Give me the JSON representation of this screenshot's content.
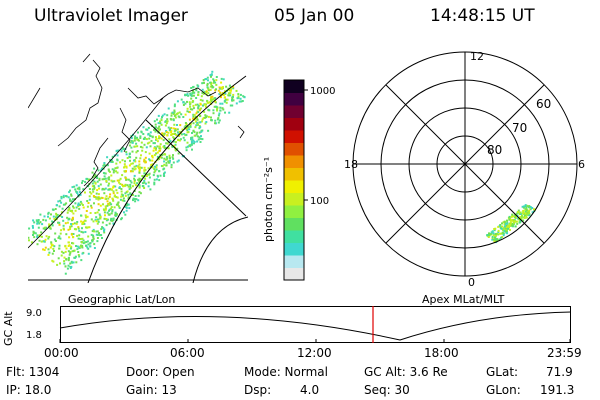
{
  "header": {
    "instrument": "Ultraviolet Imager",
    "date": "05 Jan 00",
    "time": "14:48:15 UT"
  },
  "panels": {
    "left_caption": "Geographic Lat/Lon",
    "right_caption": "Apex MLat/MLT"
  },
  "colorbar": {
    "unit_label": "photon cm⁻²s⁻¹",
    "ticks": [
      "1000",
      "100"
    ],
    "colors": [
      "#e8e8e8",
      "#b8e8f0",
      "#40d8d0",
      "#40e0a0",
      "#60e060",
      "#90f040",
      "#c8f020",
      "#f0f000",
      "#f0c000",
      "#f09000",
      "#e05000",
      "#d01000",
      "#a00010",
      "#700030",
      "#400040",
      "#100020"
    ]
  },
  "polar": {
    "mlt_labels": [
      "12",
      "18",
      "6",
      "0"
    ],
    "lat_labels": [
      "60",
      "70",
      "80"
    ]
  },
  "altitude_plot": {
    "axis_label": "GC Alt",
    "y_ticks": [
      "9.0",
      "1.8"
    ],
    "x_ticks": [
      "00:00",
      "06:00",
      "12:00",
      "18:00",
      "23:59"
    ],
    "current_time_marker_color": "#e00000"
  },
  "info": {
    "flt": "Flt: 1304",
    "door": "Door: Open",
    "mode": "Mode: Normal",
    "gc_alt": "GC Alt: 3.6 Re",
    "glat": "GLat:",
    "glat_val": "71.9",
    "ip": "IP: 18.0",
    "gain": "Gain: 13",
    "dsp": "Dsp:",
    "dsp_val": "4.0",
    "seq": "Seq: 30",
    "glon": "GLon:",
    "glon_val": "191.3"
  }
}
